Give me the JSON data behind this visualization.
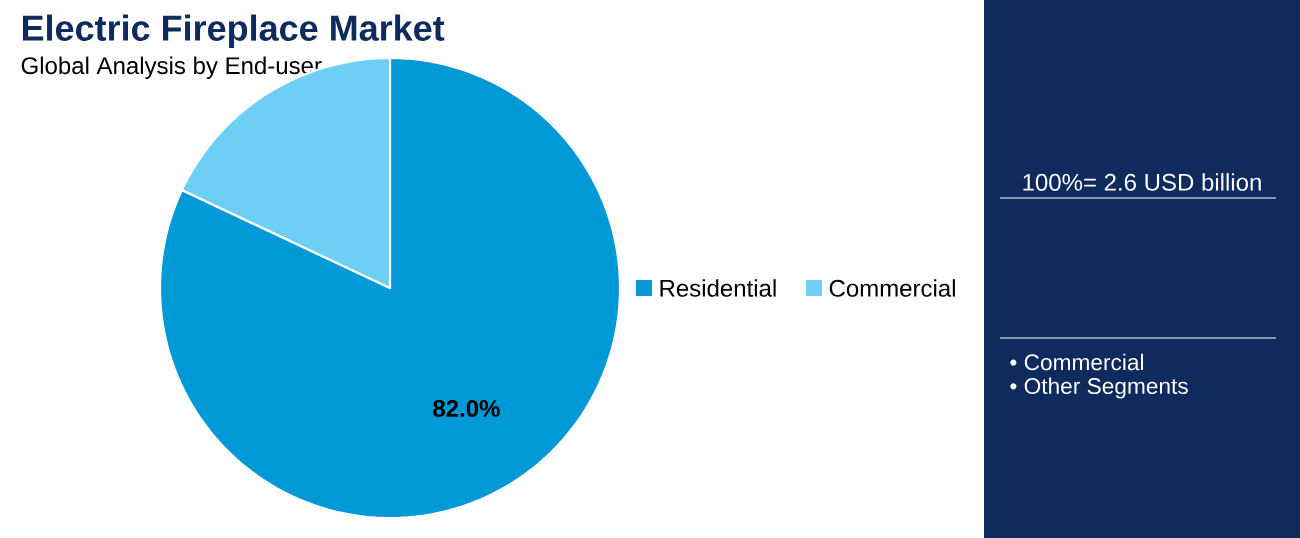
{
  "chart_data": {
    "type": "pie",
    "title": "Electric Fireplace Market",
    "subtitle": "Global Analysis by End-user",
    "categories": [
      "Residential",
      "Commercial"
    ],
    "values": [
      82.0,
      18.0
    ],
    "colors": [
      "#0099d8",
      "#6dcff6"
    ],
    "value_labels": [
      "82.0%",
      null
    ],
    "legend": "right",
    "annotations": [
      "100%= 2.6 USD billion",
      "• Commercial",
      "• Other Segments"
    ]
  }
}
